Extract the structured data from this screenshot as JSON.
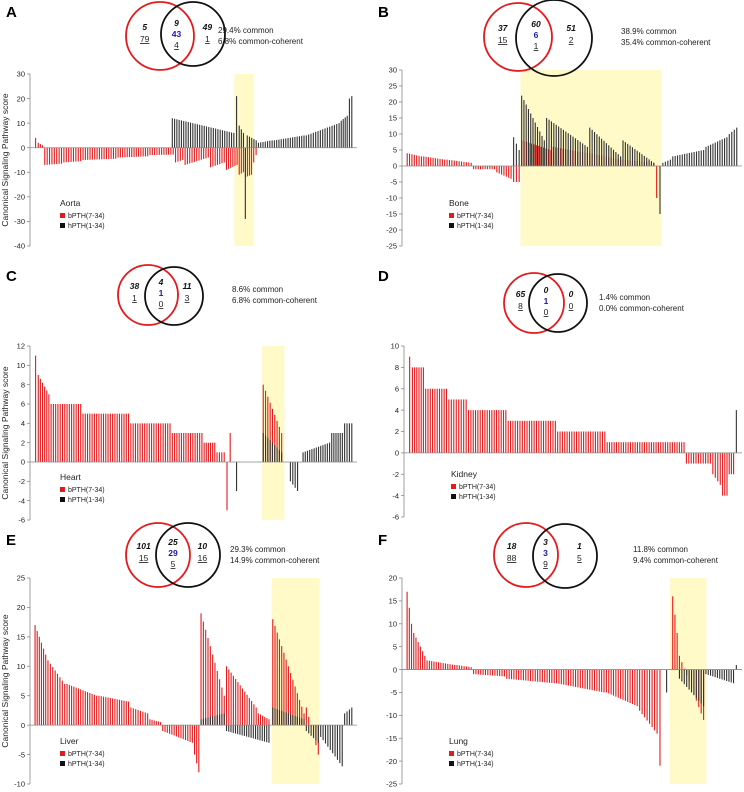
{
  "chart_data": [
    {
      "panel": "A",
      "type": "bar",
      "organ": "Aorta",
      "ylabel": "Canonical Signaling Pathway score",
      "ylim": [
        -40,
        30
      ],
      "yticks": [
        30,
        20,
        10,
        0,
        -10,
        -20,
        -30,
        -40
      ],
      "venn": {
        "left_italic": "5",
        "left_ul": "79",
        "mid_italic": "9",
        "mid_blue": "43",
        "mid_ul": "4",
        "right_italic": "49",
        "right_ul": "1"
      },
      "stats": [
        "29.4% common",
        "6.8% common-coherent"
      ],
      "legend": [
        "bPTH(7-34)",
        "hPTH(1-34)"
      ],
      "colors": {
        "red": "#e41a1c",
        "black": "#333333",
        "highlight": "#fffac8"
      },
      "highlight": [
        0.628,
        0.688
      ],
      "series": [
        {
          "name": "bPTH(7-34)",
          "segments": [
            [
              0.0,
              0.01,
              4,
              2
            ],
            [
              0.01,
              0.03,
              2,
              1
            ],
            [
              0.03,
              0.09,
              -7,
              -6.5
            ],
            [
              0.09,
              0.15,
              -6,
              -5.5
            ],
            [
              0.15,
              0.26,
              -5,
              -4.5
            ],
            [
              0.26,
              0.36,
              -4,
              -3.5
            ],
            [
              0.36,
              0.44,
              -3,
              -2.8
            ],
            [
              0.44,
              0.47,
              -6,
              -5
            ],
            [
              0.47,
              0.55,
              -7,
              -4
            ],
            [
              0.55,
              0.6,
              -8,
              -6
            ],
            [
              0.6,
              0.64,
              -9,
              -7
            ],
            [
              0.64,
              0.66,
              -11,
              -10
            ],
            [
              0.66,
              0.685,
              -12,
              -11
            ],
            [
              0.685,
              0.7,
              -6,
              -3
            ]
          ]
        },
        {
          "name": "hPTH(1-34)",
          "segments": [
            [
              0.43,
              0.63,
              12,
              6
            ],
            [
              0.63,
              0.64,
              21,
              20
            ],
            [
              0.64,
              0.66,
              9,
              6
            ],
            [
              0.66,
              0.665,
              -29,
              -29
            ],
            [
              0.665,
              0.7,
              5,
              3
            ],
            [
              0.7,
              0.75,
              2,
              3
            ],
            [
              0.75,
              0.85,
              3,
              5
            ],
            [
              0.85,
              0.96,
              5,
              10
            ],
            [
              0.96,
              0.985,
              11,
              13
            ],
            [
              0.985,
              1.0,
              20,
              21
            ]
          ]
        }
      ]
    },
    {
      "panel": "B",
      "type": "bar",
      "organ": "Bone",
      "ylabel": "",
      "ylim": [
        -25,
        30
      ],
      "yticks": [
        30,
        25,
        20,
        15,
        10,
        5,
        0,
        -5,
        -10,
        -15,
        -20,
        -25
      ],
      "venn": {
        "left_italic": "37",
        "left_ul": "15",
        "mid_italic": "60",
        "mid_blue": "6",
        "mid_ul": "1",
        "right_italic": "51",
        "right_ul": "2"
      },
      "stats": [
        "38.9% common",
        "35.4% common-coherent"
      ],
      "legend": [
        "bPTH(7-34)",
        "hPTH(1-34)"
      ],
      "colors": {
        "red": "#e41a1c",
        "black": "#333333",
        "highlight": "#fffac8"
      },
      "highlight": [
        0.345,
        0.77
      ],
      "series": [
        {
          "name": "bPTH(7-34)",
          "segments": [
            [
              0.0,
              0.05,
              4,
              3
            ],
            [
              0.05,
              0.12,
              3,
              2
            ],
            [
              0.12,
              0.2,
              2,
              1
            ],
            [
              0.2,
              0.27,
              -1,
              -1
            ],
            [
              0.27,
              0.32,
              -2,
              -4
            ],
            [
              0.32,
              0.345,
              -5,
              -5
            ],
            [
              0.345,
              0.44,
              8,
              5
            ],
            [
              0.44,
              0.55,
              6,
              4
            ],
            [
              0.55,
              0.65,
              4,
              2
            ],
            [
              0.65,
              0.75,
              2,
              1
            ],
            [
              0.75,
              0.76,
              -10,
              -10
            ]
          ]
        },
        {
          "name": "hPTH(1-34)",
          "segments": [
            [
              0.32,
              0.345,
              9,
              5
            ],
            [
              0.345,
              0.42,
              22,
              8
            ],
            [
              0.42,
              0.55,
              15,
              6
            ],
            [
              0.55,
              0.65,
              12,
              3
            ],
            [
              0.65,
              0.75,
              8,
              1
            ],
            [
              0.76,
              0.77,
              -15,
              -17
            ],
            [
              0.77,
              0.8,
              1,
              2
            ],
            [
              0.8,
              0.9,
              3,
              5
            ],
            [
              0.9,
              0.97,
              6,
              9
            ],
            [
              0.97,
              1.0,
              10,
              12
            ]
          ]
        }
      ]
    },
    {
      "panel": "C",
      "type": "bar",
      "organ": "Heart",
      "ylabel": "Canonical Signaling Pathway score",
      "ylim": [
        -6,
        12
      ],
      "yticks": [
        12,
        10,
        8,
        6,
        4,
        2,
        0,
        -2,
        -4,
        -6
      ],
      "venn": {
        "left_italic": "38",
        "left_ul": "1",
        "mid_italic": "4",
        "mid_blue": "1",
        "mid_ul": "0",
        "right_italic": "11",
        "right_ul": "3"
      },
      "stats": [
        "8.6% common",
        "6.8% common-coherent"
      ],
      "legend": [
        "bPTH(7-34)",
        "hPTH(1-34)"
      ],
      "colors": {
        "red": "#e41a1c",
        "black": "#333333",
        "highlight": "#fffac8"
      },
      "highlight": [
        0.715,
        0.785
      ],
      "series": [
        {
          "name": "bPTH(7-34)",
          "segments": [
            [
              0.0,
              0.01,
              11,
              11
            ],
            [
              0.01,
              0.05,
              9,
              7
            ],
            [
              0.05,
              0.15,
              6,
              6
            ],
            [
              0.15,
              0.3,
              5,
              5
            ],
            [
              0.3,
              0.43,
              4,
              4
            ],
            [
              0.43,
              0.53,
              3,
              3
            ],
            [
              0.53,
              0.57,
              2,
              2
            ],
            [
              0.57,
              0.6,
              1,
              1
            ],
            [
              0.6,
              0.61,
              -5,
              -5
            ],
            [
              0.61,
              0.62,
              3,
              3
            ],
            [
              0.715,
              0.78,
              8,
              3
            ]
          ]
        },
        {
          "name": "hPTH(1-34)",
          "segments": [
            [
              0.63,
              0.64,
              -3,
              -3
            ],
            [
              0.715,
              0.78,
              3,
              1
            ],
            [
              0.8,
              0.83,
              -2,
              -3
            ],
            [
              0.84,
              0.93,
              1,
              2
            ],
            [
              0.93,
              0.97,
              3,
              3
            ],
            [
              0.97,
              1.0,
              4,
              4
            ]
          ]
        }
      ]
    },
    {
      "panel": "D",
      "type": "bar",
      "organ": "Kidney",
      "ylabel": "",
      "ylim": [
        -6,
        10
      ],
      "yticks": [
        10,
        8,
        6,
        4,
        2,
        0,
        -2,
        -4,
        -6
      ],
      "venn": {
        "left_italic": "65",
        "left_ul": "8",
        "mid_italic": "0",
        "mid_blue": "1",
        "mid_ul": "0",
        "right_italic": "0",
        "right_ul": "0"
      },
      "stats": [
        "1.4% common",
        "0.0% common-coherent"
      ],
      "legend": [
        "bPTH(7-34)",
        "hPTH(1-34)"
      ],
      "colors": {
        "red": "#e41a1c",
        "black": "#333333",
        "highlight": "#fffac8"
      },
      "highlight": null,
      "series": [
        {
          "name": "bPTH(7-34)",
          "segments": [
            [
              0.0,
              0.01,
              9,
              9
            ],
            [
              0.01,
              0.05,
              8,
              8
            ],
            [
              0.05,
              0.12,
              6,
              6
            ],
            [
              0.12,
              0.18,
              5,
              5
            ],
            [
              0.18,
              0.3,
              4,
              4
            ],
            [
              0.3,
              0.45,
              3,
              3
            ],
            [
              0.45,
              0.6,
              2,
              2
            ],
            [
              0.6,
              0.84,
              1,
              1
            ],
            [
              0.84,
              0.92,
              -1,
              -1
            ],
            [
              0.92,
              0.95,
              -2,
              -3
            ],
            [
              0.95,
              0.97,
              -4,
              -4
            ],
            [
              0.97,
              0.99,
              -2,
              -2
            ]
          ]
        },
        {
          "name": "hPTH(1-34)",
          "segments": [
            [
              0.99,
              1.0,
              4,
              4
            ]
          ]
        }
      ]
    },
    {
      "panel": "E",
      "type": "bar",
      "organ": "Liver",
      "ylabel": "Canonical Signaling Pathway score",
      "ylim": [
        -10,
        25
      ],
      "yticks": [
        25,
        20,
        15,
        10,
        5,
        0,
        -5,
        -10
      ],
      "venn": {
        "left_italic": "101",
        "left_ul": "15",
        "mid_italic": "25",
        "mid_blue": "29",
        "mid_ul": "5",
        "right_italic": "10",
        "right_ul": "16"
      },
      "stats": [
        "29.3% common",
        "14.9% common-coherent"
      ],
      "legend": [
        "bPTH(7-34)",
        "hPTH(1-34)"
      ],
      "colors": {
        "red": "#e41a1c",
        "black": "#333333",
        "highlight": "#fffac8"
      },
      "highlight": [
        0.745,
        0.895
      ],
      "series": [
        {
          "name": "bPTH(7-34)",
          "segments": [
            [
              0.0,
              0.04,
              17,
              12
            ],
            [
              0.04,
              0.1,
              11,
              7
            ],
            [
              0.1,
              0.2,
              7,
              5
            ],
            [
              0.2,
              0.3,
              5,
              4
            ],
            [
              0.3,
              0.36,
              3,
              2
            ],
            [
              0.36,
              0.4,
              1,
              0.5
            ],
            [
              0.4,
              0.5,
              -1,
              -3
            ],
            [
              0.5,
              0.52,
              -5,
              -8
            ],
            [
              0.52,
              0.6,
              19,
              5
            ],
            [
              0.6,
              0.7,
              10,
              3
            ],
            [
              0.7,
              0.74,
              2,
              1
            ],
            [
              0.745,
              0.85,
              18,
              2
            ],
            [
              0.85,
              0.895,
              3,
              -5
            ]
          ]
        },
        {
          "name": "hPTH(1-34)",
          "segments": [
            [
              0.52,
              0.6,
              1,
              2
            ],
            [
              0.6,
              0.74,
              -1,
              -3
            ],
            [
              0.745,
              0.85,
              3,
              1
            ],
            [
              0.85,
              0.895,
              -1,
              -3
            ],
            [
              0.895,
              0.97,
              -2,
              -7
            ],
            [
              0.97,
              1.0,
              2,
              3
            ]
          ]
        }
      ]
    },
    {
      "panel": "F",
      "type": "bar",
      "organ": "Lung",
      "ylabel": "",
      "ylim": [
        -25,
        20
      ],
      "yticks": [
        20,
        15,
        10,
        5,
        0,
        -5,
        -10,
        -15,
        -20,
        -25
      ],
      "venn": {
        "left_italic": "18",
        "left_ul": "88",
        "mid_italic": "3",
        "mid_blue": "3",
        "mid_ul": "9",
        "right_italic": "1",
        "right_ul": "5"
      },
      "stats": [
        "11.8% common",
        "9.4% common-coherent"
      ],
      "legend": [
        "bPTH(7-34)",
        "hPTH(1-34)"
      ],
      "colors": {
        "red": "#e41a1c",
        "black": "#333333",
        "highlight": "#fffac8"
      },
      "highlight": [
        0.795,
        0.905
      ],
      "series": [
        {
          "name": "bPTH(7-34)",
          "segments": [
            [
              0.0,
              0.02,
              17,
              10
            ],
            [
              0.02,
              0.06,
              8,
              3
            ],
            [
              0.06,
              0.15,
              2,
              1
            ],
            [
              0.15,
              0.2,
              1,
              0.5
            ],
            [
              0.2,
              0.3,
              -1,
              -1.5
            ],
            [
              0.3,
              0.45,
              -2,
              -3
            ],
            [
              0.45,
              0.6,
              -3,
              -5
            ],
            [
              0.6,
              0.7,
              -5,
              -8
            ],
            [
              0.7,
              0.76,
              -9,
              -14
            ],
            [
              0.76,
              0.77,
              -21,
              -21
            ],
            [
              0.8,
              0.82,
              16,
              8
            ],
            [
              0.82,
              0.9,
              3,
              -11
            ]
          ]
        },
        {
          "name": "hPTH(1-34)",
          "segments": [
            [
              0.78,
              0.79,
              -5,
              -5
            ],
            [
              0.82,
              0.9,
              -2,
              -8
            ],
            [
              0.9,
              0.99,
              -1,
              -3
            ],
            [
              0.99,
              1.0,
              1,
              1
            ]
          ]
        }
      ]
    }
  ]
}
